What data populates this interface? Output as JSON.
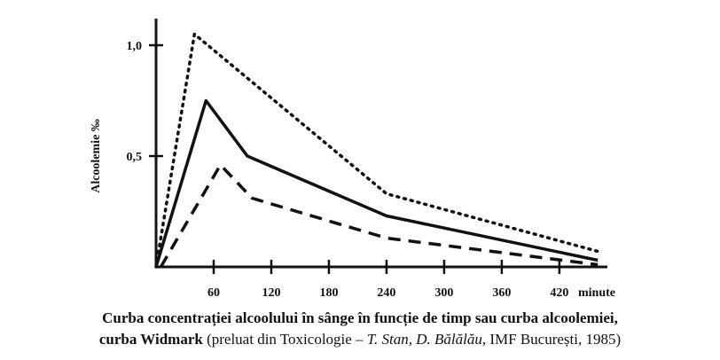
{
  "chart_data": {
    "type": "line",
    "ylabel": "Alcoolemie ‰",
    "x_unit": "minute",
    "x_ticks": [
      60,
      120,
      180,
      240,
      300,
      360,
      420
    ],
    "x_range": [
      0,
      470
    ],
    "y_ticks": [
      {
        "value": 0.5,
        "label": "0,5"
      },
      {
        "value": 1.0,
        "label": "1,0"
      }
    ],
    "y_range": [
      0,
      1.12
    ],
    "grid": false,
    "series": [
      {
        "style": "dotted",
        "points": [
          [
            0,
            0
          ],
          [
            40,
            1.05
          ],
          [
            240,
            0.33
          ],
          [
            460,
            0.07
          ]
        ]
      },
      {
        "style": "solid",
        "points": [
          [
            0,
            0
          ],
          [
            52,
            0.75
          ],
          [
            95,
            0.5
          ],
          [
            240,
            0.23
          ],
          [
            460,
            0.03
          ]
        ]
      },
      {
        "style": "dashed",
        "points": [
          [
            5,
            0
          ],
          [
            67,
            0.46
          ],
          [
            100,
            0.31
          ],
          [
            240,
            0.13
          ],
          [
            460,
            0.01
          ]
        ]
      }
    ]
  },
  "caption": {
    "line1": "Curba concentrației alcoolului în sânge în funcție de timp sau curba alcoolemiei,",
    "line2_bold": "curba Widmark",
    "line2_a": " (preluat din Toxicologie – ",
    "line2_italic": "T. Stan, D. Bălălău",
    "line2_b": ", IMF București, 1985)"
  }
}
